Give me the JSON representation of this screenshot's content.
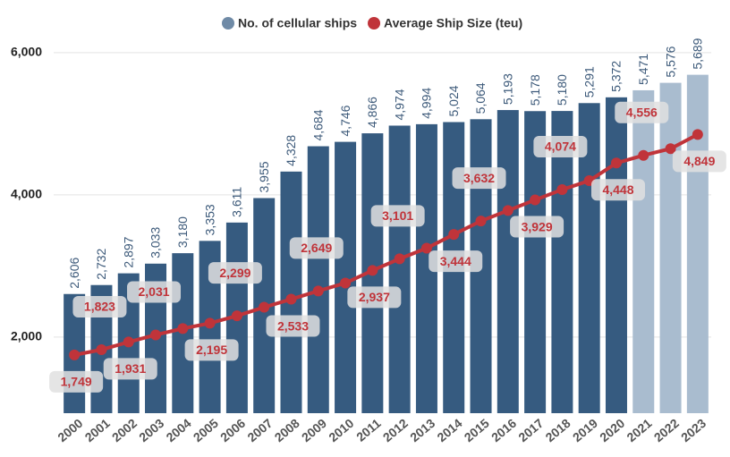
{
  "chart_data": {
    "type": "bar_line",
    "categories": [
      "2000",
      "2001",
      "2002",
      "2003",
      "2004",
      "2005",
      "2006",
      "2007",
      "2008",
      "2009",
      "2010",
      "2011",
      "2012",
      "2013",
      "2014",
      "2015",
      "2016",
      "2017",
      "2018",
      "2019",
      "2020",
      "2021",
      "2022",
      "2023"
    ],
    "series": [
      {
        "name": "No. of cellular ships",
        "type": "bar",
        "color": "#365b80",
        "colors": [
          "#365b80",
          "#365b80",
          "#365b80",
          "#365b80",
          "#365b80",
          "#365b80",
          "#365b80",
          "#365b80",
          "#365b80",
          "#365b80",
          "#365b80",
          "#365b80",
          "#365b80",
          "#365b80",
          "#365b80",
          "#365b80",
          "#365b80",
          "#365b80",
          "#365b80",
          "#365b80",
          "#365b80",
          "#a9bccf",
          "#a9bccf",
          "#a9bccf"
        ],
        "values": [
          2606,
          2732,
          2897,
          3033,
          3180,
          3353,
          3611,
          3955,
          4328,
          4684,
          4746,
          4866,
          4974,
          4994,
          5024,
          5064,
          5193,
          5178,
          5180,
          5291,
          5372,
          5471,
          5576,
          5689
        ],
        "value_labels": [
          "2,606",
          "2,732",
          "2,897",
          "3,033",
          "3,180",
          "3,353",
          "3,611",
          "3,955",
          "4,328",
          "4,684",
          "4,746",
          "4,866",
          "4,974",
          "4,994",
          "5,024",
          "5,064",
          "5,193",
          "5,178",
          "5,180",
          "5,291",
          "5,372",
          "5,471",
          "5,576",
          "5,689"
        ]
      },
      {
        "name": "Average Ship Size (teu)",
        "type": "line",
        "color": "#c0343a",
        "values": [
          1749,
          1823,
          1931,
          2031,
          2120,
          2195,
          2299,
          2420,
          2533,
          2649,
          2760,
          2937,
          3101,
          3250,
          3444,
          3632,
          3780,
          3929,
          4074,
          4200,
          4448,
          4556,
          4650,
          4849
        ],
        "value_labels": [
          "1,749",
          "1,823",
          "1,931",
          "2,031",
          null,
          "2,195",
          "2,299",
          null,
          "2,533",
          "2,649",
          null,
          "2,937",
          "3,101",
          null,
          "3,444",
          "3,632",
          null,
          "3,929",
          "4,074",
          null,
          "4,448",
          "4,556",
          null,
          "4,849"
        ]
      }
    ],
    "ylim": [
      930,
      6200
    ],
    "yticks": [
      {
        "value": 2000,
        "label": "2,000"
      },
      {
        "value": 4000,
        "label": "4,000"
      },
      {
        "value": 6000,
        "label": "6,000"
      }
    ],
    "grid": true,
    "legend": "top"
  }
}
